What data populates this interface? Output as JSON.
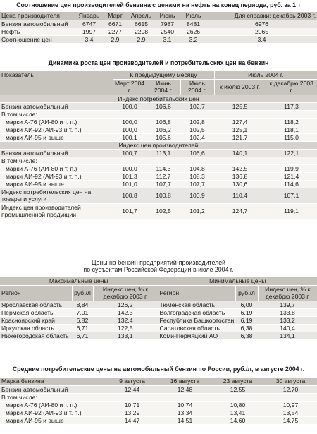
{
  "t1": {
    "title": "Соотношение цен производителей бензина с ценами на нефть на конец периода, руб. за 1 т",
    "headers": [
      "Цена производителя",
      "Январь",
      "Март",
      "Апрель",
      "Июнь",
      "Июль",
      "Для справки: декабрь 2003 г."
    ],
    "rows": [
      [
        "Бензин автомобильный",
        "6747",
        "6671",
        "6615",
        "7987",
        "8481",
        "6976"
      ],
      [
        "Нефть",
        "1997",
        "2277",
        "2298",
        "2540",
        "2626",
        "2065"
      ],
      [
        "Соотношение цен",
        "3,4",
        "2,9",
        "2,9",
        "3,1",
        "3,2",
        "3,4"
      ]
    ]
  },
  "t2": {
    "title": "Динамика роста цен производителей и потребительских цен на бензин",
    "h_indicator": "Показатель",
    "h_group1": "К предыдущему месяцу",
    "h_group2": "Июль 2004 г.",
    "cols": [
      "Март 2004 г.",
      "Июнь 2004 г.",
      "Июль 2004 г.",
      "к июлю 2003 г.",
      "к декабрю 2003 г."
    ],
    "sub1": "Индекс потребительских цен",
    "s1_rows": [
      [
        "Бензин автомобильный",
        "100,0",
        "106,6",
        "102,7",
        "125,5",
        "117,3"
      ],
      [
        "В том числе:",
        "",
        "",
        "",
        "",
        ""
      ],
      [
        "марки А-76 (АИ-80 и т. п.)",
        "100,0",
        "106,8",
        "102,8",
        "127,4",
        "118,2"
      ],
      [
        "марки АИ-92 (АИ-93 и т. п.)",
        "100,0",
        "106,2",
        "102,5",
        "125,1",
        "118,1"
      ],
      [
        "марки АИ-95 и выше",
        "100,1",
        "105,6",
        "102,4",
        "121,7",
        "115,0"
      ]
    ],
    "sub2": "Индекс цен производителей",
    "s2_rows": [
      [
        "Бензин автомобильный",
        "100,7",
        "113,1",
        "106,6",
        "140,1",
        "122,1"
      ],
      [
        "В том числе:",
        "",
        "",
        "",
        "",
        ""
      ],
      [
        "марки А-76 (АИ-80 и т. п.)",
        "100,0",
        "114,3",
        "104,8",
        "142,5",
        "119,9"
      ],
      [
        "марки АИ-92 (АИ-93 и т. п.)",
        "101,3",
        "112,7",
        "108,3",
        "136,8",
        "121,4"
      ],
      [
        "марки АИ-95 и выше",
        "101,0",
        "107,7",
        "107,7",
        "130,6",
        "114,6"
      ]
    ],
    "extra_rows": [
      [
        "Индекс потребительских цен на товары и услуги",
        "100,8",
        "100,8",
        "100,9",
        "110,4",
        "107,1"
      ],
      [
        "Индекс цен производителей промышленной продукции",
        "101,7",
        "102,5",
        "101,2",
        "124,7",
        "119,1"
      ]
    ]
  },
  "t3": {
    "title1": "Цены на бензин предприятий-производителей",
    "title2": "по субъектам Российской Федерации в июле 2004 г.",
    "max_label": "Максимальные цены",
    "min_label": "Минимальные цены",
    "h_region": "Регион",
    "h_price": "руб./л",
    "h_index": "Индекс цен, % к декабрю 2003 г.",
    "rows": [
      [
        "Ярославская область",
        "8,84",
        "126,2",
        "Тюменская область",
        "6,00",
        "139,7"
      ],
      [
        "Пермская область",
        "7,01",
        "142,3",
        "Волгоградская область",
        "6,19",
        "133,8"
      ],
      [
        "Красноярский край",
        "6,82",
        "132,4",
        "Республика Башкортостан",
        "6,19",
        "133,2"
      ],
      [
        "Иркутская область",
        "6,71",
        "122,5",
        "Саратовская область",
        "6,38",
        "140,4"
      ],
      [
        "Нижегородская область",
        "6,71",
        "133,1",
        "Коми-Пермяцкий АО",
        "6,38",
        "134,1"
      ]
    ]
  },
  "t4": {
    "title": "Средние потребительские цены на автомобильный бензин по России, руб./л, в августе 2004 г.",
    "headers": [
      "Марка бензина",
      "9 августа",
      "16 августа",
      "23 августа",
      "30 августа"
    ],
    "rows": [
      [
        "Бензин автомобильный",
        "12,44",
        "12,48",
        "12,55",
        "12,70"
      ],
      [
        "В том числе:",
        "",
        "",
        "",
        ""
      ],
      [
        "марки А-76 (АИ-80 и т. п.)",
        "10,71",
        "10,74",
        "10,80",
        "10,97"
      ],
      [
        "марки АИ-92 (АИ-93 и т. п.)",
        "13,29",
        "13,34",
        "13,41",
        "13,54"
      ],
      [
        "марки АИ-95 и выше",
        "14,47",
        "14,51",
        "14,60",
        "14,75"
      ]
    ]
  }
}
